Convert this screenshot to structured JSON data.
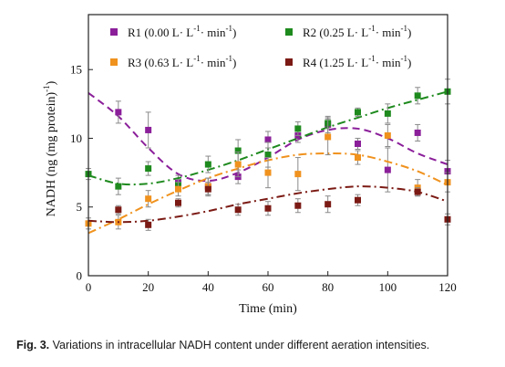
{
  "chart_data": {
    "type": "scatter",
    "title": "",
    "xlabel": "Time (min)",
    "ylabel": "NADH (ng (mg protein)",
    "ylabel_sup": "-1",
    "ylabel_close": ")",
    "xlim": [
      0,
      120
    ],
    "ylim": [
      0,
      19
    ],
    "xticks": [
      0,
      20,
      40,
      60,
      80,
      100,
      120
    ],
    "yticks": [
      0,
      5,
      10,
      15
    ],
    "grid": false,
    "legend_position": "top",
    "series": [
      {
        "name": "R1 (0.00 L· L⁻¹· min⁻¹)",
        "label_main": "R1 (0.00 L· L",
        "label_sup1": "-1",
        "label_mid": "· min",
        "label_sup2": "-1",
        "label_end": ")",
        "color": "#8B1F9A",
        "line_style": "dash",
        "x": [
          10,
          20,
          30,
          40,
          50,
          60,
          70,
          80,
          90,
          100,
          110,
          120
        ],
        "y": [
          11.9,
          10.6,
          6.8,
          6.5,
          7.2,
          9.9,
          10.2,
          11.0,
          9.6,
          7.7,
          10.4,
          7.6
        ],
        "err": [
          0.8,
          1.3,
          0.5,
          0.6,
          0.5,
          0.6,
          0.5,
          0.6,
          0.4,
          1.6,
          0.6,
          0.8
        ],
        "fit": [
          [
            0,
            13.3
          ],
          [
            10,
            11.6
          ],
          [
            20,
            9.3
          ],
          [
            30,
            7.4
          ],
          [
            40,
            6.9
          ],
          [
            50,
            7.5
          ],
          [
            60,
            8.6
          ],
          [
            70,
            9.9
          ],
          [
            80,
            10.6
          ],
          [
            90,
            10.7
          ],
          [
            100,
            10.0
          ],
          [
            110,
            8.9
          ],
          [
            120,
            8.1
          ]
        ]
      },
      {
        "name": "R2 (0.25 L· L⁻¹· min⁻¹)",
        "label_main": "R2 (0.25 L· L",
        "label_sup1": "-1",
        "label_mid": "· min",
        "label_sup2": "-1",
        "label_end": ")",
        "color": "#1E8A1E",
        "line_style": "dashdot",
        "x": [
          0,
          10,
          20,
          30,
          40,
          50,
          60,
          70,
          80,
          90,
          100,
          110,
          120
        ],
        "y": [
          7.4,
          6.5,
          7.8,
          6.6,
          8.1,
          9.1,
          8.8,
          10.7,
          11.1,
          11.9,
          11.8,
          13.1,
          13.4
        ],
        "err": [
          0.4,
          0.6,
          0.5,
          0.4,
          0.6,
          0.8,
          0.9,
          0.5,
          0.4,
          0.3,
          0.7,
          0.6,
          0.9
        ],
        "fit": [
          [
            0,
            7.3
          ],
          [
            10,
            6.7
          ],
          [
            20,
            6.7
          ],
          [
            30,
            7.1
          ],
          [
            40,
            7.7
          ],
          [
            50,
            8.4
          ],
          [
            60,
            9.2
          ],
          [
            70,
            10.0
          ],
          [
            80,
            10.8
          ],
          [
            90,
            11.5
          ],
          [
            100,
            12.2
          ],
          [
            110,
            12.8
          ],
          [
            120,
            13.4
          ]
        ]
      },
      {
        "name": "R3 (0.63 L· L⁻¹· min⁻¹)",
        "label_main": "R3 (0.63 L· L",
        "label_sup1": "-1",
        "label_mid": "· min",
        "label_sup2": "-1",
        "label_end": ")",
        "color": "#F0921E",
        "line_style": "dashdot",
        "x": [
          0,
          10,
          20,
          30,
          40,
          50,
          60,
          70,
          80,
          90,
          100,
          110,
          120
        ],
        "y": [
          3.8,
          3.9,
          5.6,
          6.3,
          6.5,
          8.1,
          7.5,
          7.4,
          10.1,
          8.6,
          10.2,
          6.4,
          6.8
        ],
        "err": [
          0.4,
          0.5,
          0.6,
          0.5,
          0.6,
          0.9,
          1.1,
          1.2,
          1.3,
          0.5,
          0.8,
          0.6,
          0.7
        ],
        "fit": [
          [
            0,
            3.1
          ],
          [
            10,
            4.1
          ],
          [
            20,
            5.2
          ],
          [
            30,
            6.2
          ],
          [
            40,
            7.1
          ],
          [
            50,
            7.8
          ],
          [
            60,
            8.4
          ],
          [
            70,
            8.8
          ],
          [
            80,
            8.9
          ],
          [
            90,
            8.8
          ],
          [
            100,
            8.3
          ],
          [
            110,
            7.6
          ],
          [
            120,
            6.6
          ]
        ]
      },
      {
        "name": "R4 (1.25 L· L⁻¹· min⁻¹)",
        "label_main": "R4 (1.25 L· L",
        "label_sup1": "-1",
        "label_mid": "· min",
        "label_sup2": "-1",
        "label_end": ")",
        "color": "#7B1A14",
        "line_style": "dashdot",
        "x": [
          10,
          20,
          30,
          40,
          50,
          60,
          70,
          80,
          90,
          110,
          120
        ],
        "y": [
          4.8,
          3.7,
          5.3,
          6.3,
          4.8,
          4.9,
          5.1,
          5.2,
          5.5,
          6.1,
          4.1
        ],
        "err": [
          0.3,
          0.4,
          0.3,
          0.5,
          0.4,
          0.5,
          0.5,
          0.6,
          0.4,
          0.3,
          0.4
        ],
        "fit": [
          [
            0,
            4.0
          ],
          [
            10,
            3.9
          ],
          [
            20,
            4.0
          ],
          [
            30,
            4.3
          ],
          [
            40,
            4.7
          ],
          [
            50,
            5.2
          ],
          [
            60,
            5.6
          ],
          [
            70,
            6.0
          ],
          [
            80,
            6.3
          ],
          [
            90,
            6.5
          ],
          [
            100,
            6.4
          ],
          [
            110,
            6.1
          ],
          [
            120,
            5.4
          ]
        ]
      }
    ]
  },
  "caption": {
    "label": "Fig. 3.",
    "text": " Variations in intracellular NADH content under different aeration intensities."
  }
}
